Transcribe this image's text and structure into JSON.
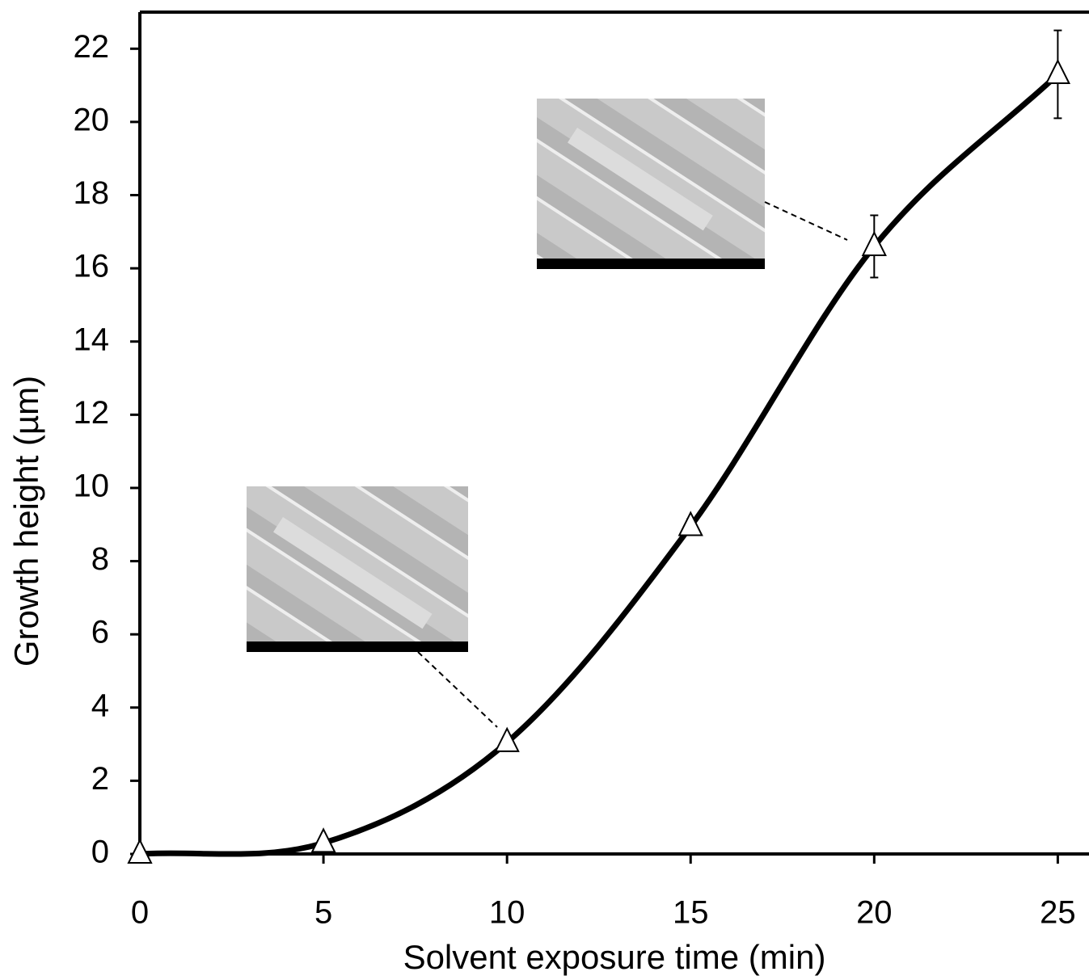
{
  "chart_data": {
    "type": "line",
    "x_label": "Solvent exposure time (min)",
    "y_label": "Growth height (µm)",
    "x": [
      0,
      5,
      10,
      15,
      20,
      25
    ],
    "series": [
      {
        "color": "#000000",
        "values": [
          0,
          0.3,
          3.05,
          8.95,
          16.6,
          21.3
        ],
        "errors": [
          0,
          0,
          0,
          0.2,
          0.85,
          1.2
        ]
      }
    ],
    "xlim": [
      0,
      25.85
    ],
    "ylim": [
      0,
      23
    ],
    "xticks": [
      0,
      5,
      10,
      15,
      20,
      25
    ],
    "yticks": [
      0,
      2,
      4,
      6,
      8,
      10,
      12,
      14,
      16,
      18,
      20,
      22
    ]
  }
}
